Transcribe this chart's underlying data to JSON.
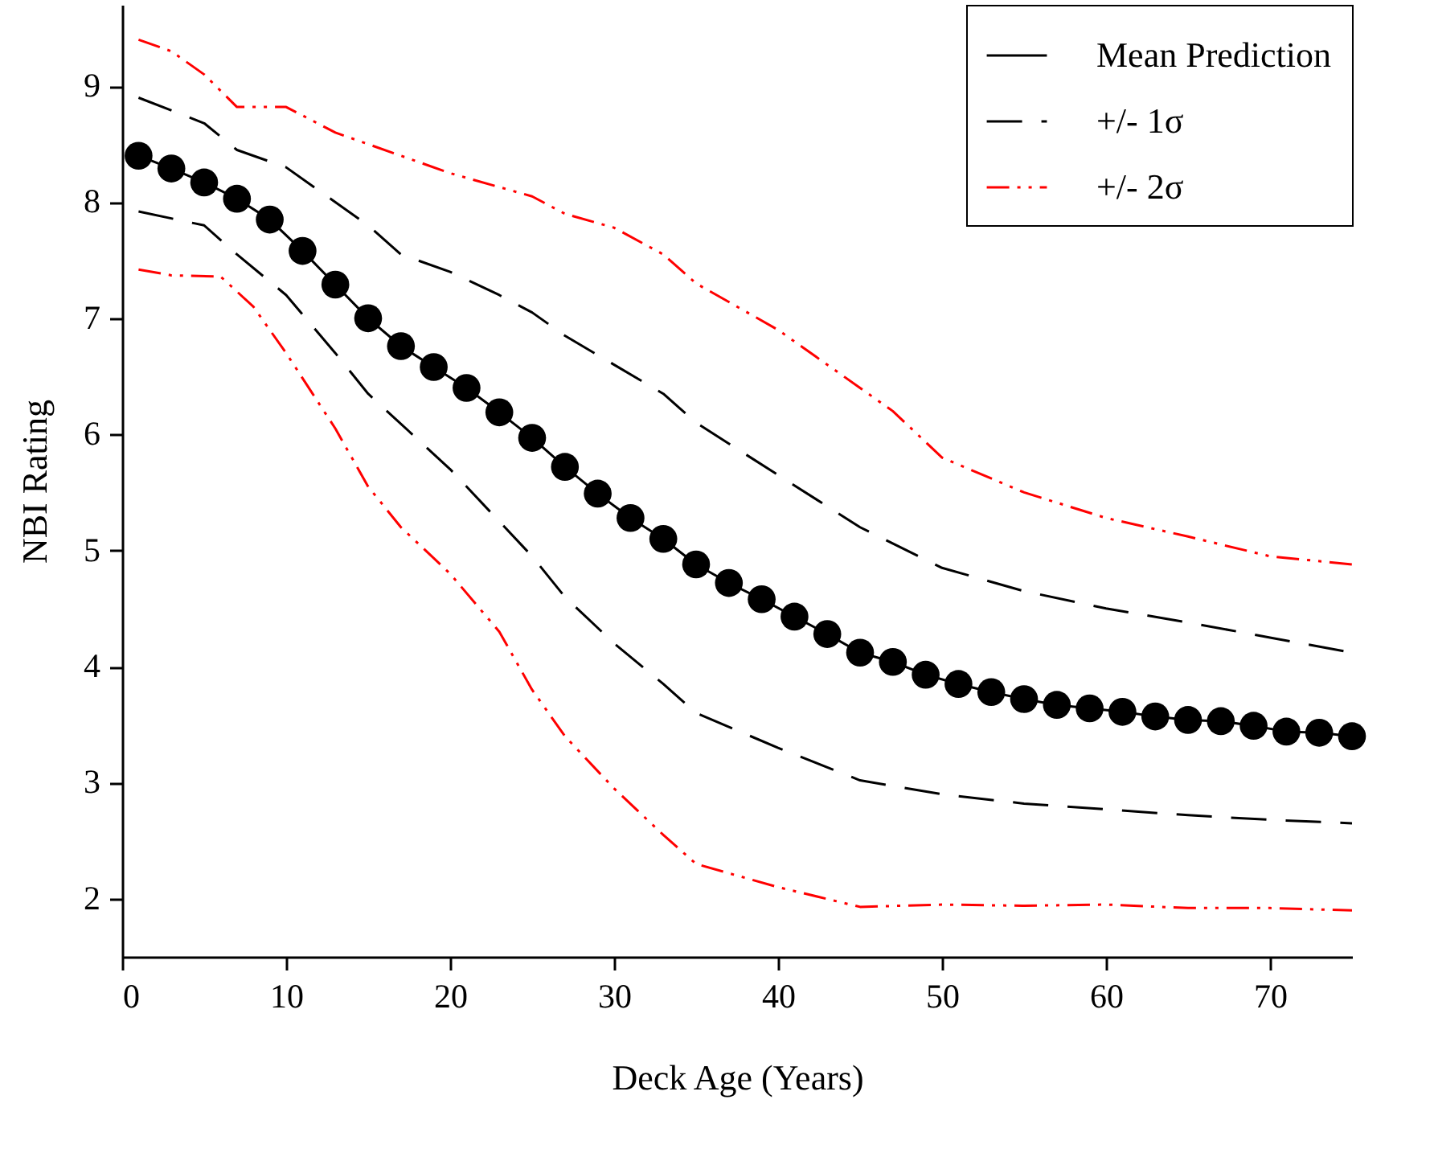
{
  "chart_data": {
    "type": "line",
    "xlabel": "Deck Age (Years)",
    "ylabel": "NBI Rating",
    "xlim": [
      0,
      75
    ],
    "ylim": [
      1.5,
      9.7
    ],
    "xticks": [
      0,
      10,
      20,
      30,
      40,
      50,
      60,
      70
    ],
    "yticks": [
      2,
      3,
      4,
      5,
      6,
      7,
      8,
      9
    ],
    "grid": false,
    "legend": "top right",
    "series": [
      {
        "name": "Mean Prediction",
        "color": "#000000",
        "marker": "circle",
        "line_style": "solid",
        "x": [
          1,
          3,
          5,
          7,
          9,
          11,
          13,
          15,
          17,
          19,
          21,
          23,
          25,
          27,
          29,
          31,
          33,
          35,
          37,
          39,
          41,
          43,
          45,
          47,
          49,
          51,
          53,
          55,
          57,
          59,
          61,
          63,
          65,
          67,
          69,
          71,
          73,
          75
        ],
        "values": [
          8.4,
          8.29,
          8.17,
          8.03,
          7.85,
          7.58,
          7.29,
          7.0,
          6.76,
          6.58,
          6.4,
          6.19,
          5.97,
          5.72,
          5.49,
          5.28,
          5.1,
          4.88,
          4.72,
          4.58,
          4.43,
          4.28,
          4.12,
          4.04,
          3.93,
          3.85,
          3.78,
          3.72,
          3.67,
          3.64,
          3.61,
          3.57,
          3.54,
          3.53,
          3.49,
          3.44,
          3.43,
          3.4
        ]
      },
      {
        "name": "+/- 1σ",
        "color": "#000000",
        "line_style": "dashed",
        "x": [
          1,
          5,
          7,
          10,
          15,
          17,
          20,
          23,
          25,
          27,
          30,
          33,
          35,
          40,
          45,
          50,
          55,
          60,
          65,
          70,
          75
        ],
        "values": [
          8.9,
          8.68,
          8.45,
          8.3,
          7.8,
          7.55,
          7.4,
          7.2,
          7.05,
          6.85,
          6.6,
          6.35,
          6.1,
          5.65,
          5.2,
          4.85,
          4.65,
          4.5,
          4.38,
          4.25,
          4.12
        ]
      },
      {
        "color": "#000000",
        "line_style": "dashed",
        "x": [
          1,
          5,
          7,
          10,
          13,
          15,
          20,
          23,
          25,
          27,
          30,
          33,
          35,
          40,
          45,
          50,
          55,
          60,
          65,
          70,
          75
        ],
        "values": [
          7.92,
          7.8,
          7.55,
          7.2,
          6.7,
          6.35,
          5.7,
          5.25,
          4.95,
          4.6,
          4.2,
          3.85,
          3.6,
          3.3,
          3.02,
          2.9,
          2.82,
          2.77,
          2.72,
          2.68,
          2.65
        ]
      },
      {
        "name": "+/- 2σ",
        "color": "#ff0000",
        "line_style": "dotted",
        "x": [
          1,
          3,
          5,
          7,
          10,
          13,
          15,
          20,
          25,
          27,
          30,
          33,
          35,
          40,
          45,
          47,
          50,
          55,
          60,
          65,
          70,
          75
        ],
        "values": [
          9.4,
          9.3,
          9.1,
          8.82,
          8.82,
          8.6,
          8.5,
          8.25,
          8.05,
          7.9,
          7.78,
          7.55,
          7.3,
          6.9,
          6.4,
          6.2,
          5.8,
          5.5,
          5.28,
          5.12,
          4.95,
          4.88
        ]
      },
      {
        "color": "#ff0000",
        "line_style": "dotted",
        "x": [
          1,
          3,
          6,
          8,
          10,
          13,
          15,
          17,
          20,
          23,
          25,
          27,
          30,
          33,
          35,
          40,
          45,
          50,
          55,
          60,
          65,
          70,
          75
        ],
        "values": [
          7.42,
          7.37,
          7.36,
          7.1,
          6.7,
          6.05,
          5.55,
          5.2,
          4.8,
          4.3,
          3.8,
          3.4,
          2.95,
          2.55,
          2.3,
          2.1,
          1.93,
          1.95,
          1.94,
          1.95,
          1.92,
          1.92,
          1.9
        ]
      }
    ]
  }
}
